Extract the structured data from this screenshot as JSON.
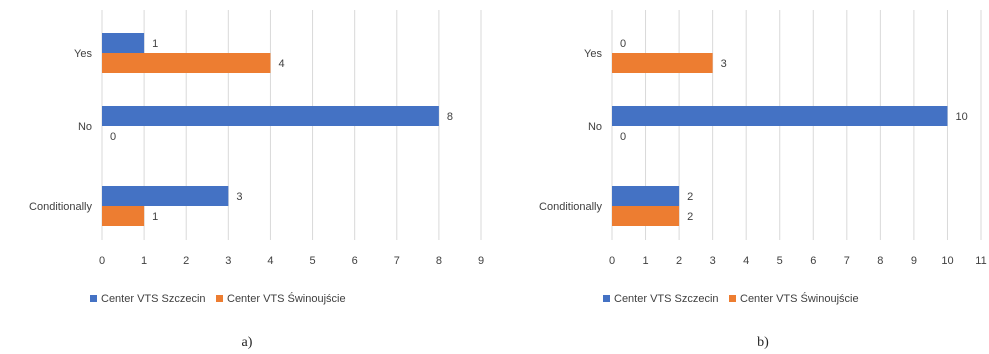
{
  "chart_data": [
    {
      "type": "bar",
      "orientation": "horizontal",
      "caption": "a)",
      "categories": [
        "Yes",
        "No",
        "Conditionally"
      ],
      "series": [
        {
          "name": "Center VTS Szczecin",
          "values": [
            1,
            8,
            3
          ],
          "color": "#4472C4"
        },
        {
          "name": "Center VTS Świnoujście",
          "values": [
            4,
            0,
            1
          ],
          "color": "#ED7D31"
        }
      ],
      "xlim": [
        0,
        9
      ],
      "xticks": [
        0,
        1,
        2,
        3,
        4,
        5,
        6,
        7,
        8,
        9
      ],
      "grid": "vertical",
      "legend": "bottom"
    },
    {
      "type": "bar",
      "orientation": "horizontal",
      "caption": "b)",
      "categories": [
        "Yes",
        "No",
        "Conditionally"
      ],
      "series": [
        {
          "name": "Center VTS Szczecin",
          "values": [
            0,
            10,
            2
          ],
          "color": "#4472C4"
        },
        {
          "name": "Center VTS Świnoujście",
          "values": [
            3,
            0,
            2
          ],
          "color": "#ED7D31"
        }
      ],
      "xlim": [
        0,
        11
      ],
      "xticks": [
        0,
        1,
        2,
        3,
        4,
        5,
        6,
        7,
        8,
        9,
        10,
        11
      ],
      "grid": "vertical",
      "legend": "bottom"
    }
  ]
}
